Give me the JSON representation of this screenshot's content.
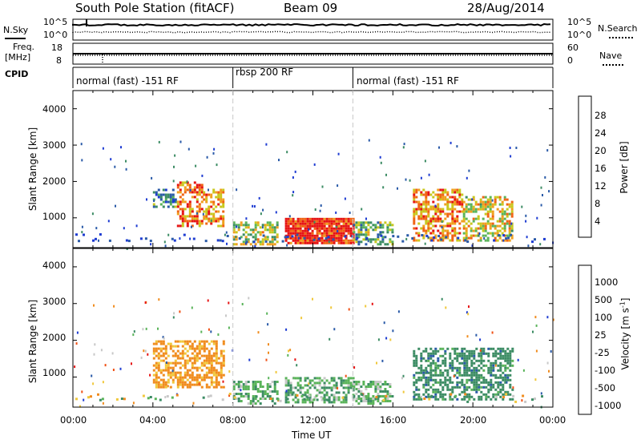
{
  "header": {
    "station": "South Pole Station (fitACF)",
    "beam": "Beam 09",
    "date": "28/Aug/2014"
  },
  "noise_panel": {
    "left_label": "N.Sky",
    "right_label": "N.Search",
    "left_ticks": [
      "10^5",
      "10^0"
    ],
    "right_ticks": [
      "10^5",
      "10^0"
    ]
  },
  "freq_panel": {
    "left_label_1": "Freq.",
    "left_label_2": "[MHz]",
    "right_label": "Nave",
    "left_ticks": [
      "18",
      "8"
    ],
    "right_ticks": [
      "60",
      "0"
    ]
  },
  "cpid_panel": {
    "label": "CPID",
    "segments": [
      "normal (fast) -151 RF",
      "rbsp 200 RF",
      "normal (fast) -151 RF"
    ]
  },
  "x_axis": {
    "label": "Time UT",
    "ticks": [
      "00:00",
      "04:00",
      "08:00",
      "12:00",
      "16:00",
      "20:00",
      "00:00"
    ]
  },
  "power_panel": {
    "ylabel": "Slant Range [km]",
    "y_ticks": [
      "1000",
      "2000",
      "3000",
      "4000"
    ],
    "colorbar_label": "Power [dB]",
    "colorbar_ticks": [
      "4",
      "8",
      "12",
      "16",
      "20",
      "24",
      "28"
    ],
    "colors": [
      "#1e3cd2",
      "#2a5aa8",
      "#3c8c64",
      "#5ab45a",
      "#c8c81e",
      "#f0a01e",
      "#f06414",
      "#e61414"
    ]
  },
  "velocity_panel": {
    "ylabel": "Slant Range [km]",
    "y_ticks": [
      "1000",
      "2000",
      "3000",
      "4000"
    ],
    "colorbar_label": "Velocity [m s",
    "colorbar_label_sup": "-1",
    "colorbar_label_end": "]",
    "colorbar_ticks": [
      "1000",
      "500",
      "100",
      "25",
      "-25",
      "-100",
      "-500",
      "-1000"
    ],
    "colors": [
      "#1e3cd2",
      "#2a5aa8",
      "#3c8c64",
      "#5ab45a",
      "#c8c8c8",
      "#f0c83c",
      "#f08c1e",
      "#f05014",
      "#e61414"
    ]
  },
  "chart_data": {
    "type": "heatmap",
    "title": "South Pole Station (fitACF)",
    "xlabel": "Time UT",
    "ylabel": "Slant Range [km]",
    "x_range_hours": [
      0,
      24
    ],
    "y_range_km": [
      180,
      4500
    ],
    "panels": [
      {
        "name": "Power [dB]",
        "color_range": [
          0,
          30
        ],
        "regions": [
          {
            "t": [
              4.0,
              5.2
            ],
            "r": [
              1300,
              1800
            ],
            "value": 9
          },
          {
            "t": [
              5.2,
              6.5
            ],
            "r": [
              800,
              2000
            ],
            "value": 24
          },
          {
            "t": [
              6.5,
              7.5
            ],
            "r": [
              800,
              1800
            ],
            "value": 22
          },
          {
            "t": [
              8.0,
              10.2
            ],
            "r": [
              300,
              900
            ],
            "value": 16
          },
          {
            "t": [
              10.6,
              14.0
            ],
            "r": [
              300,
              1000
            ],
            "value": 28
          },
          {
            "t": [
              14.0,
              16.0
            ],
            "r": [
              300,
              900
            ],
            "value": 12
          },
          {
            "t": [
              17.0,
              19.5
            ],
            "r": [
              400,
              1800
            ],
            "value": 22
          },
          {
            "t": [
              19.5,
              22.0
            ],
            "r": [
              400,
              1600
            ],
            "value": 18
          }
        ]
      },
      {
        "name": "Velocity [m s-1]",
        "color_range": [
          -1000,
          1000
        ],
        "regions": [
          {
            "t": [
              4.0,
              7.5
            ],
            "r": [
              700,
              2000
            ],
            "value": -150
          },
          {
            "t": [
              8.0,
              10.2
            ],
            "r": [
              300,
              900
            ],
            "value": 80
          },
          {
            "t": [
              10.6,
              14.0
            ],
            "r": [
              300,
              1000
            ],
            "value": 80
          },
          {
            "t": [
              14.0,
              16.0
            ],
            "r": [
              300,
              900
            ],
            "value": 60
          },
          {
            "t": [
              17.0,
              22.0
            ],
            "r": [
              400,
              1800
            ],
            "value": 300
          }
        ]
      }
    ]
  }
}
